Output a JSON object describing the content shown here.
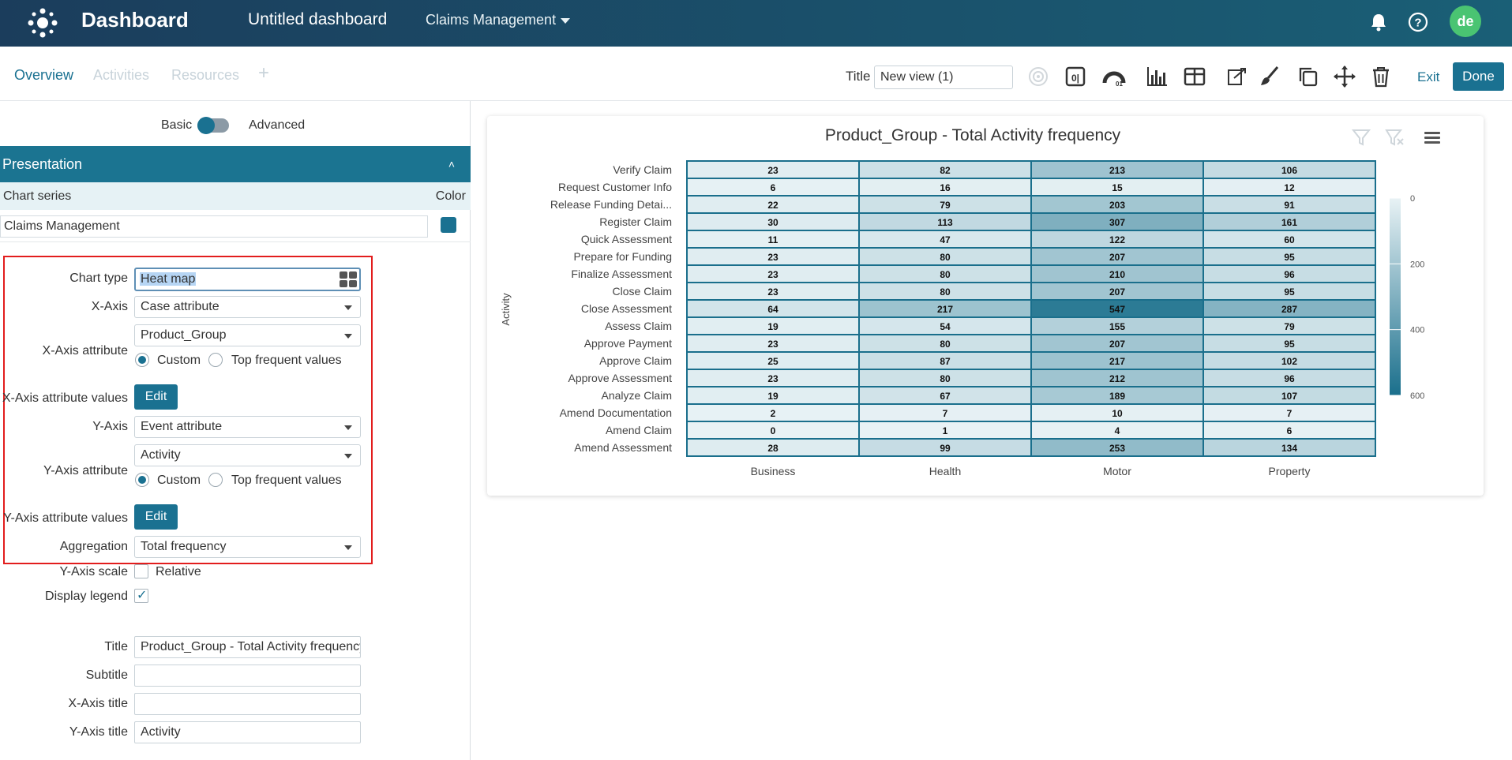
{
  "header": {
    "app_title": "Dashboard",
    "dashboard_name": "Untitled dashboard",
    "project": "Claims Management",
    "avatar_initials": "de"
  },
  "tabs": [
    {
      "label": "Overview",
      "active": true
    },
    {
      "label": "Activities",
      "active": false
    },
    {
      "label": "Resources",
      "active": false
    }
  ],
  "toolbar": {
    "title_label": "Title",
    "title_value": "New view (1)",
    "exit_label": "Exit",
    "done_label": "Done",
    "icons": [
      "radar-icon",
      "kpi-icon",
      "gauge-icon",
      "bar-chart-icon",
      "table-icon",
      "export-icon",
      "brush-icon",
      "duplicate-icon",
      "move-icon",
      "delete-icon"
    ]
  },
  "panel": {
    "mode_basic": "Basic",
    "mode_advanced": "Advanced",
    "section_title": "Presentation",
    "chart_series_label": "Chart series",
    "color_label": "Color",
    "series_name": "Claims Management",
    "series_color": "#1a7191",
    "chart_type_label": "Chart type",
    "chart_type_value": "Heat map",
    "x_axis_label": "X-Axis",
    "x_axis_value": "Case attribute",
    "x_axis_attr_label": "X-Axis attribute",
    "x_axis_attr_value": "Product_Group",
    "custom_label": "Custom",
    "top_frequent_label": "Top frequent values",
    "x_axis_values_label": "X-Axis attribute values",
    "edit_label": "Edit",
    "y_axis_label": "Y-Axis",
    "y_axis_value": "Event attribute",
    "y_axis_attr_label": "Y-Axis attribute",
    "y_axis_attr_value": "Activity",
    "y_axis_values_label": "Y-Axis attribute values",
    "aggregation_label": "Aggregation",
    "aggregation_value": "Total frequency",
    "y_scale_label": "Y-Axis scale",
    "relative_label": "Relative",
    "relative_checked": false,
    "display_legend_label": "Display legend",
    "display_legend_checked": true,
    "title_label": "Title",
    "title_value": "Product_Group - Total Activity frequency",
    "subtitle_label": "Subtitle",
    "subtitle_value": "",
    "x_title_label": "X-Axis title",
    "x_title_value": "",
    "y_title_label": "Y-Axis title",
    "y_title_value": "Activity"
  },
  "chart_data": {
    "type": "heatmap",
    "title": "Product_Group - Total Activity frequency",
    "ylabel": "Activity",
    "xlabel": "",
    "x": [
      "Business",
      "Health",
      "Motor",
      "Property"
    ],
    "y": [
      "Verify Claim",
      "Request Customer Info",
      "Release Funding Detai...",
      "Register Claim",
      "Quick Assessment",
      "Prepare for Funding",
      "Finalize Assessment",
      "Close Claim",
      "Close Assessment",
      "Assess Claim",
      "Approve Payment",
      "Approve Claim",
      "Approve Assessment",
      "Analyze Claim",
      "Amend Documentation",
      "Amend Claim",
      "Amend Assessment"
    ],
    "values": [
      [
        23,
        82,
        213,
        106
      ],
      [
        6,
        16,
        15,
        12
      ],
      [
        22,
        79,
        203,
        91
      ],
      [
        30,
        113,
        307,
        161
      ],
      [
        11,
        47,
        122,
        60
      ],
      [
        23,
        80,
        207,
        95
      ],
      [
        23,
        80,
        210,
        96
      ],
      [
        23,
        80,
        207,
        95
      ],
      [
        64,
        217,
        547,
        287
      ],
      [
        19,
        54,
        155,
        79
      ],
      [
        23,
        80,
        207,
        95
      ],
      [
        25,
        87,
        217,
        102
      ],
      [
        23,
        80,
        212,
        96
      ],
      [
        19,
        67,
        189,
        107
      ],
      [
        2,
        7,
        10,
        7
      ],
      [
        0,
        1,
        4,
        6
      ],
      [
        28,
        99,
        253,
        134
      ]
    ],
    "colorscale": {
      "min": 0,
      "max": 600,
      "ticks": [
        0,
        200,
        400,
        600
      ],
      "low_color": "#e8f2f5",
      "high_color": "#1a6f8c"
    },
    "legend": "right"
  }
}
